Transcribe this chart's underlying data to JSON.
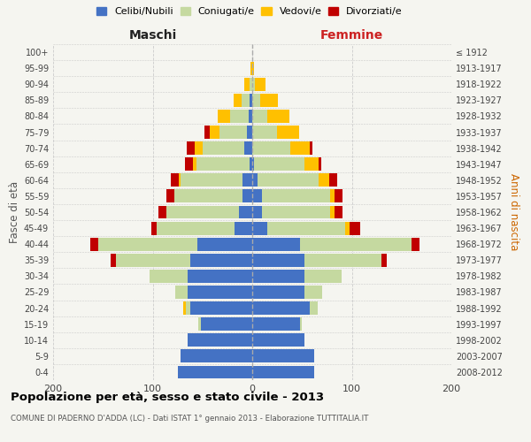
{
  "age_groups": [
    "0-4",
    "5-9",
    "10-14",
    "15-19",
    "20-24",
    "25-29",
    "30-34",
    "35-39",
    "40-44",
    "45-49",
    "50-54",
    "55-59",
    "60-64",
    "65-69",
    "70-74",
    "75-79",
    "80-84",
    "85-89",
    "90-94",
    "95-99",
    "100+"
  ],
  "birth_years": [
    "2008-2012",
    "2003-2007",
    "1998-2002",
    "1993-1997",
    "1988-1992",
    "1983-1987",
    "1978-1982",
    "1973-1977",
    "1968-1972",
    "1963-1967",
    "1958-1962",
    "1953-1957",
    "1948-1952",
    "1943-1947",
    "1938-1942",
    "1933-1937",
    "1928-1932",
    "1923-1927",
    "1918-1922",
    "1913-1917",
    "≤ 1912"
  ],
  "male_celibi": [
    75,
    72,
    65,
    52,
    62,
    65,
    65,
    62,
    55,
    18,
    13,
    10,
    10,
    3,
    8,
    5,
    4,
    3,
    0,
    0,
    0
  ],
  "male_coniugati": [
    0,
    0,
    0,
    2,
    5,
    12,
    38,
    75,
    100,
    78,
    73,
    68,
    62,
    53,
    42,
    28,
    18,
    8,
    3,
    0,
    0
  ],
  "male_vedovi": [
    0,
    0,
    0,
    0,
    2,
    0,
    0,
    0,
    0,
    0,
    0,
    0,
    2,
    4,
    8,
    10,
    13,
    8,
    5,
    2,
    0
  ],
  "male_divorziati": [
    0,
    0,
    0,
    0,
    0,
    0,
    0,
    5,
    8,
    5,
    8,
    8,
    8,
    8,
    8,
    5,
    0,
    0,
    0,
    0,
    0
  ],
  "female_nubili": [
    62,
    62,
    52,
    48,
    58,
    52,
    52,
    52,
    48,
    15,
    10,
    10,
    5,
    2,
    0,
    0,
    0,
    0,
    0,
    0,
    0
  ],
  "female_coniugate": [
    0,
    0,
    0,
    2,
    8,
    18,
    38,
    78,
    112,
    78,
    68,
    68,
    62,
    50,
    38,
    25,
    15,
    8,
    3,
    0,
    0
  ],
  "female_vedove": [
    0,
    0,
    0,
    0,
    0,
    0,
    0,
    0,
    0,
    5,
    5,
    5,
    10,
    15,
    20,
    22,
    22,
    18,
    10,
    2,
    0
  ],
  "female_divorziate": [
    0,
    0,
    0,
    0,
    0,
    0,
    0,
    5,
    8,
    10,
    8,
    8,
    8,
    2,
    2,
    0,
    0,
    0,
    0,
    0,
    0
  ],
  "colors": {
    "celibi": "#4472c4",
    "coniugati": "#c5d9a0",
    "vedovi": "#ffc000",
    "divorziati": "#c00000"
  },
  "title": "Popolazione per età, sesso e stato civile - 2013",
  "subtitle": "COMUNE DI PADERNO D'ADDA (LC) - Dati ISTAT 1° gennaio 2013 - Elaborazione TUTTITALIA.IT",
  "label_maschi": "Maschi",
  "label_femmine": "Femmine",
  "label_fasce": "Fasce di età",
  "label_anni": "Anni di nascita",
  "legend_labels": [
    "Celibi/Nubili",
    "Coniugati/e",
    "Vedovi/e",
    "Divorziati/e"
  ],
  "xlim": 200,
  "bg_color": "#f5f5f0",
  "grid_color": "#cccccc"
}
